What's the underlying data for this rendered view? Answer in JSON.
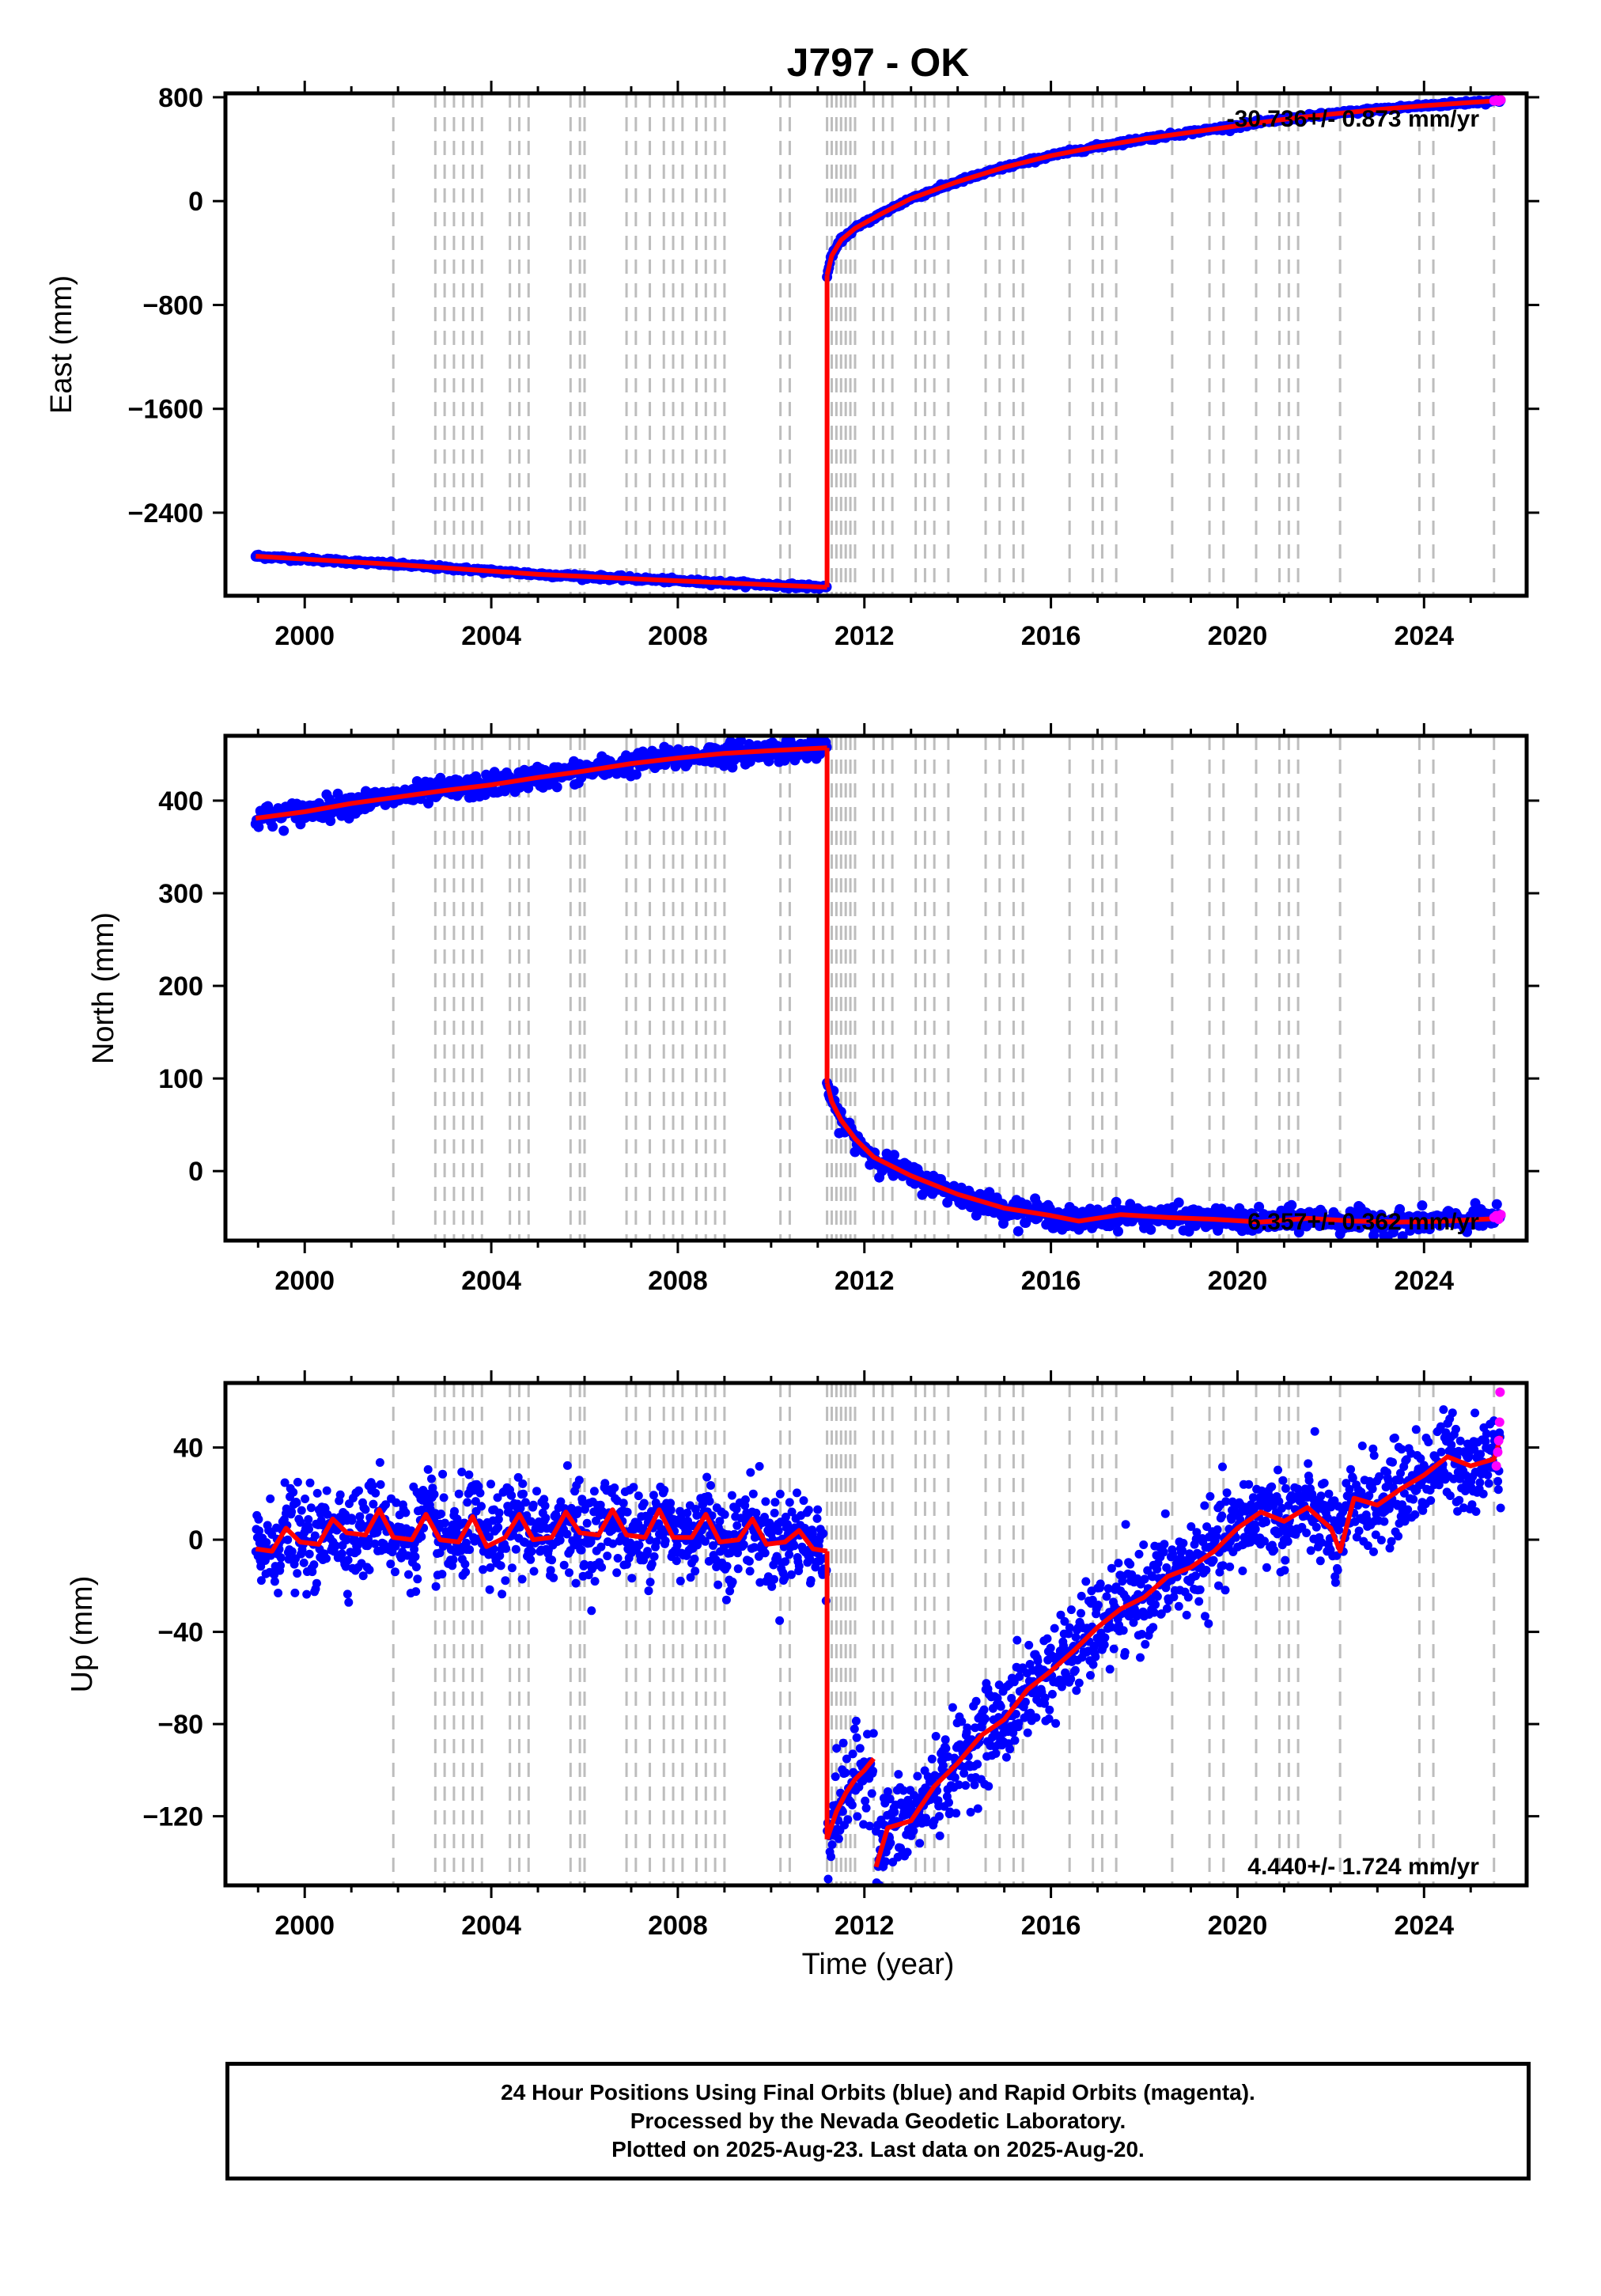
{
  "colors": {
    "final_orbits": "#0000ff",
    "rapid_orbits": "#ff00ff",
    "model": "#ff0000",
    "event_lines": "#bdbdbd"
  },
  "chart_data": {
    "type": "scatter",
    "title": "J797 - OK",
    "xlabel": "Time (year)",
    "xlim": [
      1998.3,
      2026.2
    ],
    "xticks": [
      2000,
      2004,
      2008,
      2012,
      2016,
      2020,
      2024
    ],
    "grid": false,
    "event_lines_years": [
      2001.9,
      2002.8,
      2003.0,
      2003.2,
      2003.4,
      2003.6,
      2003.8,
      2004.4,
      2004.6,
      2004.8,
      2005.7,
      2005.9,
      2006.0,
      2006.9,
      2007.1,
      2007.4,
      2007.7,
      2007.9,
      2008.1,
      2008.4,
      2008.6,
      2008.8,
      2009.0,
      2010.2,
      2010.4,
      2011.2,
      2011.3,
      2011.4,
      2011.5,
      2011.6,
      2011.7,
      2011.8,
      2012.2,
      2012.4,
      2012.6,
      2013.1,
      2013.3,
      2013.5,
      2013.8,
      2014.6,
      2014.9,
      2015.2,
      2015.4,
      2016.4,
      2016.9,
      2017.1,
      2017.4,
      2018.6,
      2019.4,
      2019.7,
      2020.4,
      2020.9,
      2021.1,
      2021.3,
      2022.2,
      2023.9,
      2024.2,
      2025.5
    ],
    "panels": [
      {
        "id": "east",
        "ylabel": "East (mm)",
        "ylim": [
          -3040,
          830
        ],
        "yticks": [
          -2400,
          -1600,
          -800,
          0,
          800
        ],
        "ytick_labels": [
          "−2400",
          "−1600",
          "−800",
          "0",
          "800"
        ],
        "rate_label": "-30.736+/- 0.873 mm/yr",
        "rate_position": "top-right",
        "model": {
          "pre_event": [
            [
              1998.95,
              -2735
            ],
            [
              2002.0,
              -2800
            ],
            [
              2005.0,
              -2875
            ],
            [
              2008.0,
              -2925
            ],
            [
              2011.2,
              -2975
            ]
          ],
          "post_event": [
            [
              2011.2,
              -570
            ],
            [
              2011.3,
              -420
            ],
            [
              2011.5,
              -300
            ],
            [
              2011.8,
              -210
            ],
            [
              2012.3,
              -110
            ],
            [
              2013.0,
              20
            ],
            [
              2014.0,
              150
            ],
            [
              2015.0,
              260
            ],
            [
              2016.0,
              350
            ],
            [
              2017.0,
              420
            ],
            [
              2018.0,
              480
            ],
            [
              2019.0,
              530
            ],
            [
              2020.0,
              580
            ],
            [
              2021.0,
              630
            ],
            [
              2022.0,
              670
            ],
            [
              2023.0,
              705
            ],
            [
              2024.0,
              735
            ],
            [
              2025.0,
              760
            ],
            [
              2025.65,
              775
            ]
          ]
        },
        "noise": 8,
        "rapid_points": [
          [
            2025.5,
            772
          ],
          [
            2025.55,
            778
          ],
          [
            2025.6,
            770
          ],
          [
            2025.65,
            780
          ]
        ]
      },
      {
        "id": "north",
        "ylabel": "North (mm)",
        "ylim": [
          -75,
          470
        ],
        "yticks": [
          0,
          100,
          200,
          300,
          400
        ],
        "ytick_labels": [
          "0",
          "100",
          "200",
          "300",
          "400"
        ],
        "rate_label": "6.357+/- 0.362 mm/yr",
        "rate_position": "bottom-right",
        "model": {
          "pre_event": [
            [
              1998.95,
              381
            ],
            [
              2000.0,
              388
            ],
            [
              2001.0,
              397
            ],
            [
              2002.0,
              404
            ],
            [
              2003.0,
              411
            ],
            [
              2004.0,
              417
            ],
            [
              2005.0,
              425
            ],
            [
              2006.0,
              432
            ],
            [
              2007.0,
              440
            ],
            [
              2008.0,
              446
            ],
            [
              2009.0,
              451
            ],
            [
              2010.0,
              454
            ],
            [
              2011.2,
              457
            ]
          ],
          "post_event": [
            [
              2011.2,
              95
            ],
            [
              2011.3,
              75
            ],
            [
              2011.5,
              55
            ],
            [
              2011.8,
              35
            ],
            [
              2012.2,
              15
            ],
            [
              2013.0,
              -5
            ],
            [
              2014.0,
              -25
            ],
            [
              2015.0,
              -40
            ],
            [
              2016.0,
              -48
            ],
            [
              2016.6,
              -54
            ],
            [
              2017.5,
              -47
            ],
            [
              2018.5,
              -50
            ],
            [
              2019.5,
              -52
            ],
            [
              2020.5,
              -55
            ],
            [
              2021.5,
              -51
            ],
            [
              2022.5,
              -54
            ],
            [
              2023.5,
              -55
            ],
            [
              2024.5,
              -54
            ],
            [
              2025.65,
              -51
            ]
          ]
        },
        "noise": 6,
        "rapid_points": [
          [
            2025.5,
            -50
          ],
          [
            2025.55,
            -48
          ],
          [
            2025.6,
            -52
          ],
          [
            2025.65,
            -47
          ]
        ]
      },
      {
        "id": "up",
        "ylabel": "Up (mm)",
        "ylim": [
          -150,
          68
        ],
        "yticks": [
          -120,
          -80,
          -40,
          0,
          40
        ],
        "ytick_labels": [
          "−120",
          "−80",
          "−40",
          "0",
          "40"
        ],
        "rate_label": "4.440+/- 1.724 mm/yr",
        "rate_position": "bottom-right",
        "model": {
          "pre_event": [
            [
              1998.95,
              -4
            ],
            [
              1999.3,
              -5
            ],
            [
              1999.6,
              5
            ],
            [
              1999.9,
              -1
            ],
            [
              2000.3,
              -2
            ],
            [
              2000.6,
              9
            ],
            [
              2000.9,
              3
            ],
            [
              2001.3,
              2
            ],
            [
              2001.6,
              13
            ],
            [
              2001.9,
              1
            ],
            [
              2002.3,
              0
            ],
            [
              2002.6,
              11
            ],
            [
              2002.9,
              0
            ],
            [
              2003.3,
              -1
            ],
            [
              2003.6,
              10
            ],
            [
              2003.9,
              -3
            ],
            [
              2004.3,
              1
            ],
            [
              2004.6,
              11
            ],
            [
              2004.9,
              0
            ],
            [
              2005.3,
              1
            ],
            [
              2005.6,
              12
            ],
            [
              2005.9,
              3
            ],
            [
              2006.3,
              2
            ],
            [
              2006.6,
              13
            ],
            [
              2006.9,
              2
            ],
            [
              2007.3,
              1
            ],
            [
              2007.6,
              13
            ],
            [
              2007.9,
              1
            ],
            [
              2008.3,
              1
            ],
            [
              2008.6,
              11
            ],
            [
              2008.9,
              -1
            ],
            [
              2009.3,
              0
            ],
            [
              2009.6,
              9
            ],
            [
              2009.9,
              -2
            ],
            [
              2010.3,
              -1
            ],
            [
              2010.6,
              4
            ],
            [
              2010.9,
              -4
            ],
            [
              2011.2,
              -5
            ]
          ],
          "post_event": [
            [
              2011.2,
              -130
            ],
            [
              2011.4,
              -118
            ],
            [
              2011.6,
              -110
            ],
            [
              2011.8,
              -104
            ],
            [
              2012.0,
              -100
            ],
            [
              2012.2,
              -95
            ]
          ],
          "post_event_2": [
            [
              2012.25,
              -142
            ],
            [
              2012.5,
              -125
            ],
            [
              2013.0,
              -122
            ],
            [
              2013.5,
              -107
            ],
            [
              2014.0,
              -97
            ],
            [
              2014.5,
              -85
            ],
            [
              2015.0,
              -78
            ],
            [
              2015.5,
              -65
            ],
            [
              2016.0,
              -57
            ],
            [
              2016.5,
              -48
            ],
            [
              2017.0,
              -38
            ],
            [
              2017.5,
              -30
            ],
            [
              2018.0,
              -25
            ],
            [
              2018.5,
              -16
            ],
            [
              2019.0,
              -12
            ],
            [
              2019.5,
              -5
            ],
            [
              2020.0,
              5
            ],
            [
              2020.5,
              12
            ],
            [
              2021.0,
              8
            ],
            [
              2021.5,
              14
            ],
            [
              2022.0,
              5
            ],
            [
              2022.2,
              -5
            ],
            [
              2022.5,
              18
            ],
            [
              2023.0,
              15
            ],
            [
              2023.5,
              22
            ],
            [
              2024.0,
              28
            ],
            [
              2024.5,
              36
            ],
            [
              2025.0,
              32
            ],
            [
              2025.5,
              35
            ],
            [
              2025.65,
              45
            ]
          ]
        },
        "noise": 10,
        "rapid_points": [
          [
            2025.55,
            32
          ],
          [
            2025.58,
            38
          ],
          [
            2025.6,
            43
          ],
          [
            2025.62,
            51
          ],
          [
            2025.63,
            64
          ]
        ]
      }
    ]
  },
  "footer": {
    "line1": "24 Hour Positions Using Final Orbits (blue) and Rapid Orbits (magenta).",
    "line2": "Processed by the Nevada Geodetic Laboratory.",
    "line3": "Plotted on 2025-Aug-23. Last data on 2025-Aug-20."
  }
}
